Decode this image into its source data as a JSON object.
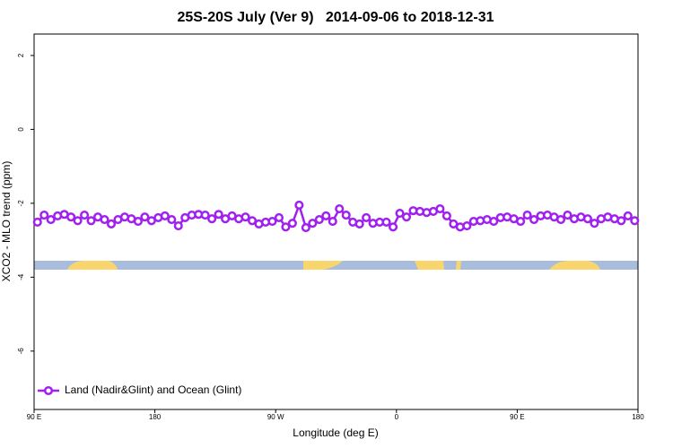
{
  "chart_data": {
    "type": "line",
    "title": "25S-20S July (Ver 9)   2014-09-06 to 2018-12-31",
    "xlabel": "Longitude (deg E)",
    "ylabel": "XCO2 - MLO trend (ppm)",
    "xlim": [
      90,
      540
    ],
    "ylim": [
      -7.58,
      2.58
    ],
    "xticks": [
      {
        "value": 90,
        "label": "90 E"
      },
      180,
      {
        "value": 270,
        "label": "90 W"
      },
      {
        "value": 360,
        "label": "0"
      },
      {
        "value": 450,
        "label": "90 E"
      },
      {
        "value": 540,
        "label": "180"
      }
    ],
    "yticks": [
      2,
      0,
      -2,
      -4,
      -6
    ],
    "legend": "bottomleft",
    "x": [
      92.5,
      97.5,
      102.5,
      107.5,
      112.5,
      117.5,
      122.5,
      127.5,
      132.5,
      137.5,
      142.5,
      147.5,
      152.5,
      157.5,
      162.5,
      167.5,
      172.5,
      177.5,
      182.5,
      187.5,
      192.5,
      197.5,
      202.5,
      207.5,
      212.5,
      217.5,
      222.5,
      227.5,
      232.5,
      237.5,
      242.5,
      247.5,
      252.5,
      257.5,
      262.5,
      267.5,
      272.5,
      277.5,
      282.5,
      287.5,
      292.5,
      297.5,
      302.5,
      307.5,
      312.5,
      317.5,
      322.5,
      327.5,
      332.5,
      337.5,
      342.5,
      347.5,
      352.5,
      357.5,
      362.5,
      367.5,
      372.5,
      377.5,
      382.5,
      387.5,
      392.5,
      397.5,
      402.5,
      407.5,
      412.5,
      417.5,
      422.5,
      427.5,
      432.5,
      437.5,
      442.5,
      447.5,
      452.5,
      457.5,
      462.5,
      467.5,
      472.5,
      477.5,
      482.5,
      487.5,
      492.5,
      497.5,
      502.5,
      507.5,
      512.5,
      517.5,
      522.5,
      527.5,
      532.5,
      537.5
    ],
    "series": [
      {
        "name": "Land (Nadir&Glint) and Ocean (Glint)",
        "color": "#a020f0",
        "values": [
          -2.51,
          -2.32,
          -2.44,
          -2.34,
          -2.3,
          -2.37,
          -2.47,
          -2.32,
          -2.47,
          -2.37,
          -2.44,
          -2.56,
          -2.44,
          -2.37,
          -2.42,
          -2.49,
          -2.37,
          -2.47,
          -2.39,
          -2.34,
          -2.44,
          -2.61,
          -2.39,
          -2.32,
          -2.3,
          -2.32,
          -2.42,
          -2.3,
          -2.42,
          -2.34,
          -2.42,
          -2.37,
          -2.47,
          -2.56,
          -2.51,
          -2.49,
          -2.39,
          -2.64,
          -2.54,
          -2.05,
          -2.66,
          -2.54,
          -2.44,
          -2.34,
          -2.49,
          -2.15,
          -2.32,
          -2.51,
          -2.56,
          -2.39,
          -2.54,
          -2.51,
          -2.51,
          -2.64,
          -2.27,
          -2.37,
          -2.2,
          -2.22,
          -2.25,
          -2.22,
          -2.15,
          -2.34,
          -2.56,
          -2.64,
          -2.61,
          -2.49,
          -2.47,
          -2.44,
          -2.49,
          -2.39,
          -2.37,
          -2.42,
          -2.49,
          -2.32,
          -2.44,
          -2.34,
          -2.32,
          -2.37,
          -2.44,
          -2.32,
          -2.42,
          -2.37,
          -2.42,
          -2.54,
          -2.42,
          -2.37,
          -2.42,
          -2.47,
          -2.34,
          -2.47
        ]
      }
    ]
  }
}
